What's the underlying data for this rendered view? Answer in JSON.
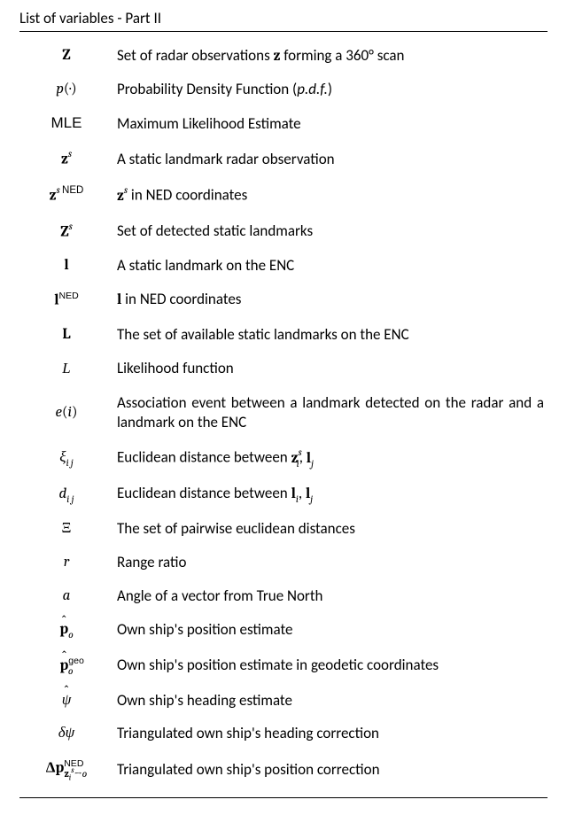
{
  "title": "List of variables - Part II",
  "rows": [
    {
      "symbol_html": "<span class='bold'>Z</span>",
      "desc_html": "Set of radar observations <span style='font-family:Cambria,serif'><span class='bold'>z</span></span> forming a 360° scan"
    },
    {
      "symbol_html": "<span class='ital'>p</span>(·)",
      "desc_html": "Probability Density Function (<span class='ital'>p.d.f.</span>)"
    },
    {
      "symbol_html": "<span class='sans'>MLE</span>",
      "desc_html": "Maximum Likelihood Estimate"
    },
    {
      "symbol_html": "<span class='bold'>z</span><span class='sup ital'>s</span>",
      "desc_html": "A static landmark radar observation"
    },
    {
      "symbol_html": "<span class='bold'>z</span><span class='sup'><span class='ital'>s</span>&thinsp;<span class='sans'>NED</span></span>",
      "desc_html": "<span style='font-family:Cambria,serif'><span class='bold'>z</span><span class='sup ital'>s</span></span> in NED coordinates"
    },
    {
      "symbol_html": "<span class='bold'>Z</span><span class='sup ital'>s</span>",
      "desc_html": "Set of detected static landmarks"
    },
    {
      "symbol_html": "<span class='bold'>l</span>",
      "desc_html": "A static landmark on the ENC"
    },
    {
      "symbol_html": "<span class='bold'>l</span><span class='sans-sup'>NED</span>",
      "desc_html": "<span style='font-family:Cambria,serif'><span class='bold'>l</span></span> in NED coordinates"
    },
    {
      "symbol_html": "<span class='bold'>L</span>",
      "desc_html": "The set of available static landmarks on the ENC"
    },
    {
      "symbol_html": "<span class='cal'>L</span>",
      "desc_html": "Likelihood function"
    },
    {
      "symbol_html": "<span class='ital'>e</span>(<span class='ital'>i</span>)",
      "desc_html": "Association event between a landmark detected on the radar and a landmark on the ENC"
    },
    {
      "symbol_html": "<span class='ital'>ξ</span><span class='sub ital'>i&thinsp;j</span>",
      "desc_html": "Euclidean distance between <span style='font-family:Cambria,serif'><span class='bold'>z</span><span class='sup ital'>s</span><span class='sub ital' style='margin-left:-6px'>i</span></span>, <span style='font-family:Cambria,serif'><span class='bold'>l</span><span class='sub ital'>j</span></span>"
    },
    {
      "symbol_html": "<span class='ital'>d</span><span class='sub ital'>i&thinsp;j</span>",
      "desc_html": "Euclidean distance between <span style='font-family:Cambria,serif'><span class='bold'>l</span><span class='sub ital'>i</span></span>, <span style='font-family:Cambria,serif'><span class='bold'>l</span><span class='sub ital'>j</span></span>"
    },
    {
      "symbol_html": "Ξ",
      "desc_html": "The set of pairwise euclidean distances"
    },
    {
      "symbol_html": "<span class='ital'>r</span>",
      "desc_html": "Range ratio"
    },
    {
      "symbol_html": "<span class='ital'>a</span>",
      "desc_html": "Angle of a vector from True North"
    },
    {
      "symbol_html": "<span class='hat'><span class='bold'>p</span></span><span class='sub ital'>o</span>",
      "desc_html": "Own ship's position estimate"
    },
    {
      "symbol_html": "<span class='hat'><span class='bold'>p</span></span><span class='sans-sup'>geo</span><span class='sub ital' style='margin-left:-18px'>o</span>",
      "desc_html": "Own ship's position estimate in geodetic coordinates"
    },
    {
      "symbol_html": "<span class='hat'><span class='ital'>ψ</span></span>",
      "desc_html": "Own ship's heading estimate"
    },
    {
      "symbol_html": "<span class='ital'>δψ</span>",
      "desc_html": "Triangulated own ship's heading correction"
    },
    {
      "symbol_html": "<span class='bold'>Δp</span><span class='sans-sup'>NED</span><span class='sub' style='margin-left:-22px'><span class='bold'>z</span><span style='font-size:0.8em;vertical-align:sub' class='ital'>i</span><span style='font-size:0.8em;vertical-align:super' class='ital'>s</span>→<span class='ital'>o</span></span>",
      "desc_html": "Triangulated own ship's position correction"
    }
  ]
}
